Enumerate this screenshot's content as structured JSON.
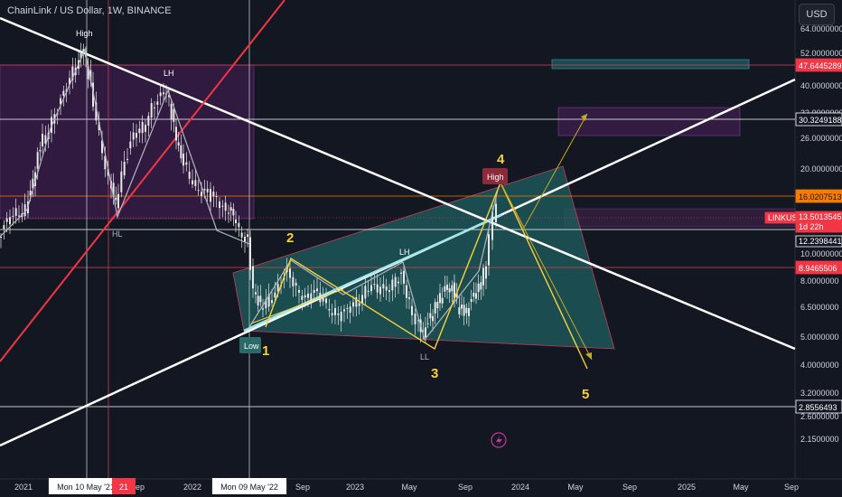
{
  "header": {
    "title": "ChainLink / US Dollar, 1W, BINANCE",
    "currency_button": "USD"
  },
  "chart_data": {
    "type": "candlestick",
    "symbol": "LINKUSD",
    "y_scale": "log",
    "y_ticks": [
      "64.0000000",
      "52.0000000",
      "40.0000000",
      "32.0000000",
      "26.0000000",
      "20.0000000",
      "16.0000000",
      "10.0000000",
      "8.0000000",
      "6.5000000",
      "5.0000000",
      "4.0000000",
      "3.2000000",
      "2.6000000",
      "2.1500000"
    ],
    "x_ticks": [
      "2021",
      "Mon 10 May '21",
      "Sep",
      "2022",
      "Mon 09 May '22",
      "Sep",
      "2023",
      "May",
      "Sep",
      "2024",
      "May",
      "Sep",
      "2025",
      "May",
      "Sep"
    ],
    "price_tags": [
      {
        "text": "47.6445289",
        "color": "#f23645"
      },
      {
        "text": "30.3249188",
        "color": "#ffffff"
      },
      {
        "text": "16.0207513",
        "color": "#f57c00"
      },
      {
        "text": "LINKUSD",
        "color": "#f23645"
      },
      {
        "text": "13.5013545",
        "color": "#f23645"
      },
      {
        "text": "1d 22h",
        "color": "#f23645"
      },
      {
        "text": "12.2398441",
        "color": "#ffffff"
      },
      {
        "text": "8.9465506",
        "color": "#f23645"
      },
      {
        "text": "2.8556493",
        "color": "#ffffff"
      }
    ],
    "x_highlight_tags": [
      {
        "text": "Mon 10 May '21",
        "color": "#ffffff"
      },
      {
        "text": "21",
        "color": "#f23645"
      },
      {
        "text": "Mon 09 May '22",
        "color": "#ffffff"
      }
    ],
    "annotations": [
      "High",
      "LH",
      "HL",
      "Low",
      "LH",
      "LL",
      "High"
    ],
    "wave_labels": [
      "1",
      "2",
      "3",
      "4",
      "5"
    ]
  }
}
